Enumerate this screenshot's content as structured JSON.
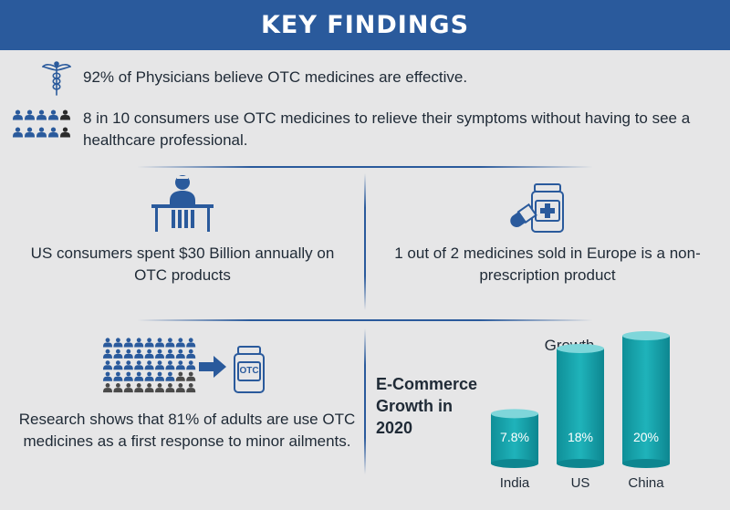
{
  "header": {
    "title": "KEY FINDINGS"
  },
  "findings": {
    "physicians": "92% of Physicians believe OTC medicines are effective.",
    "consumers": "8 in 10 consumers use OTC medicines to relieve their symptoms without having to see a healthcare professional.",
    "us_spend": "US consumers spent $30 Billion annually on OTC products",
    "europe": "1 out of 2 medicines sold in Europe is a non-prescription product",
    "research": "Research shows that 81% of adults are use OTC medicines as a first response to minor ailments."
  },
  "icons": {
    "caduceus": "caduceus-icon",
    "people": "people-group-icon",
    "desk_person": "person-at-desk-icon",
    "medicine": "pill-bottle-icon",
    "crowd": "crowd-icon",
    "arrow": "arrow-right-icon",
    "otc_bottle": "otc-bottle-icon",
    "otc_label": "OTC"
  },
  "ecommerce": {
    "title_line1": "E-Commerce",
    "title_line2": "Growth in",
    "title_line3": "2020"
  },
  "colors": {
    "header": "#2a5a9c",
    "accent": "#2a5a9c",
    "cylinder": "#19a6ad",
    "background": "#e6e6e7"
  },
  "chart_data": {
    "type": "bar",
    "title": "Growth",
    "categories": [
      "India",
      "US",
      "China"
    ],
    "values": [
      7.8,
      18,
      20
    ],
    "value_labels": [
      "7.8%",
      "18%",
      "20%"
    ],
    "unit": "%"
  }
}
